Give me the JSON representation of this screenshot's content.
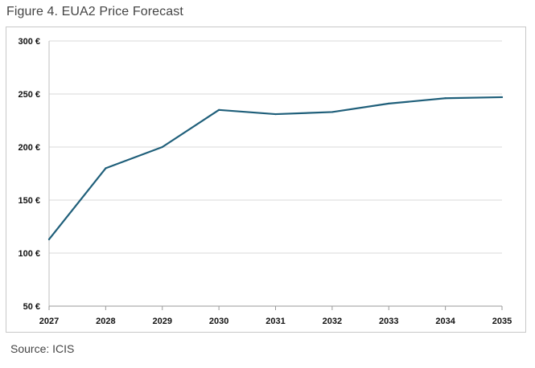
{
  "figure_title": "Figure 4. EUA2 Price Forecast",
  "source": "Source: ICIS",
  "colors": {
    "line": "#1f5f7a",
    "grid": "#d9d9d9",
    "frame": "#c8c8c8"
  },
  "chart_data": {
    "type": "line",
    "title": "Figure 4. EUA2 Price Forecast",
    "xlabel": "",
    "ylabel": "",
    "categories": [
      "2027",
      "2028",
      "2029",
      "2030",
      "2031",
      "2032",
      "2033",
      "2034",
      "2035"
    ],
    "series": [
      {
        "name": "EUA2 Price",
        "values": [
          113,
          180,
          200,
          235,
          231,
          233,
          241,
          246,
          247
        ]
      }
    ],
    "ylim": [
      50,
      300
    ],
    "yticks": [
      50,
      100,
      150,
      200,
      250,
      300
    ],
    "ytick_labels": [
      "50 €",
      "100 €",
      "150 €",
      "200 €",
      "250 €",
      "300 €"
    ],
    "grid": true,
    "legend": "none"
  }
}
